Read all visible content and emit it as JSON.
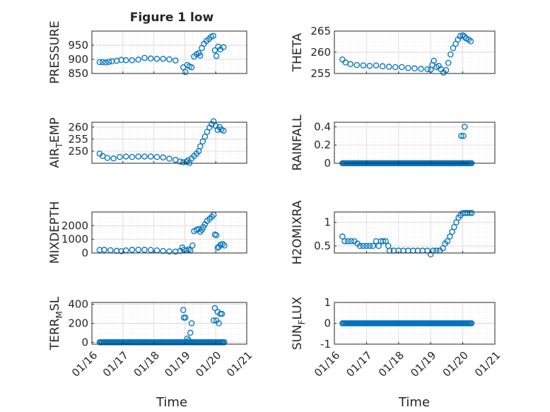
{
  "figure": {
    "title": "Figure 1 low",
    "x_label": "Time",
    "x_ticks": [
      "01/16",
      "01/17",
      "01/18",
      "01/19",
      "01/20",
      "01/21"
    ],
    "colors": {
      "marker": "#0072BD",
      "axis": "#262626",
      "grid": "#d9d9d9"
    }
  },
  "chart_data": [
    {
      "type": "scatter",
      "ylabel": "PRESSURE",
      "ylim": [
        850,
        1000
      ],
      "yticks": [
        "850",
        "900",
        "950"
      ],
      "xlim": [
        "2024-01-16",
        "2024-01-21"
      ],
      "x_day_range": [
        16.0,
        21.0
      ],
      "grid": true,
      "minor_grid": true,
      "series": [
        {
          "points": [
            [
              16.25,
              890
            ],
            [
              16.35,
              890
            ],
            [
              16.45,
              889
            ],
            [
              16.55,
              891
            ],
            [
              16.65,
              893
            ],
            [
              16.8,
              895
            ],
            [
              16.95,
              898
            ],
            [
              17.1,
              897
            ],
            [
              17.3,
              897
            ],
            [
              17.5,
              899
            ],
            [
              17.7,
              905
            ],
            [
              17.9,
              903
            ],
            [
              18.1,
              902
            ],
            [
              18.3,
              902
            ],
            [
              18.5,
              900
            ],
            [
              18.7,
              896
            ],
            [
              18.95,
              872
            ],
            [
              19.02,
              855
            ],
            [
              19.08,
              880
            ],
            [
              19.15,
              875
            ],
            [
              19.22,
              872
            ],
            [
              19.3,
              910
            ],
            [
              19.38,
              918
            ],
            [
              19.45,
              922
            ],
            [
              19.5,
              913
            ],
            [
              19.55,
              940
            ],
            [
              19.62,
              955
            ],
            [
              19.7,
              965
            ],
            [
              19.78,
              972
            ],
            [
              19.85,
              980
            ],
            [
              19.92,
              983
            ],
            [
              19.97,
              932
            ],
            [
              20.02,
              912
            ],
            [
              20.08,
              945
            ],
            [
              20.15,
              935
            ],
            [
              20.25,
              943
            ]
          ]
        }
      ]
    },
    {
      "type": "scatter",
      "ylabel": "THETA",
      "ylim": [
        255,
        265
      ],
      "yticks": [
        "255",
        "260",
        "265"
      ],
      "x_day_range": [
        16.0,
        21.0
      ],
      "grid": true,
      "minor_grid": true,
      "series": [
        {
          "points": [
            [
              16.25,
              258.3
            ],
            [
              16.35,
              257.6
            ],
            [
              16.5,
              257.2
            ],
            [
              16.7,
              257.0
            ],
            [
              16.9,
              256.9
            ],
            [
              17.1,
              256.8
            ],
            [
              17.3,
              256.9
            ],
            [
              17.5,
              256.7
            ],
            [
              17.7,
              256.6
            ],
            [
              17.9,
              256.5
            ],
            [
              18.1,
              256.5
            ],
            [
              18.3,
              256.3
            ],
            [
              18.5,
              256.2
            ],
            [
              18.7,
              256.1
            ],
            [
              18.9,
              256.0
            ],
            [
              19.0,
              255.9
            ],
            [
              19.05,
              257.0
            ],
            [
              19.1,
              258.0
            ],
            [
              19.18,
              256.5
            ],
            [
              19.25,
              256.8
            ],
            [
              19.32,
              256.0
            ],
            [
              19.4,
              255.2
            ],
            [
              19.48,
              255.8
            ],
            [
              19.55,
              257.5
            ],
            [
              19.62,
              259.5
            ],
            [
              19.7,
              261.0
            ],
            [
              19.78,
              262.0
            ],
            [
              19.85,
              263.0
            ],
            [
              19.92,
              263.8
            ],
            [
              20.0,
              264.0
            ],
            [
              20.05,
              263.7
            ],
            [
              20.1,
              263.3
            ],
            [
              20.18,
              263.0
            ],
            [
              20.25,
              262.6
            ]
          ]
        }
      ]
    },
    {
      "type": "scatter",
      "ylabel_parts": [
        "AIR",
        "T",
        "EMP"
      ],
      "ylim": [
        245,
        262
      ],
      "yticks": [
        "250",
        "255",
        "260"
      ],
      "x_day_range": [
        16.0,
        21.0
      ],
      "grid": true,
      "minor_grid": true,
      "series": [
        {
          "points": [
            [
              16.25,
              249.0
            ],
            [
              16.35,
              248.0
            ],
            [
              16.5,
              247.2
            ],
            [
              16.7,
              247.0
            ],
            [
              16.9,
              247.6
            ],
            [
              17.1,
              247.8
            ],
            [
              17.3,
              247.6
            ],
            [
              17.5,
              247.8
            ],
            [
              17.7,
              247.8
            ],
            [
              17.9,
              247.8
            ],
            [
              18.1,
              247.6
            ],
            [
              18.3,
              247.4
            ],
            [
              18.5,
              246.9
            ],
            [
              18.7,
              246.4
            ],
            [
              18.85,
              245.7
            ],
            [
              18.95,
              245.4
            ],
            [
              19.05,
              245.5
            ],
            [
              19.1,
              246.2
            ],
            [
              19.15,
              245.1
            ],
            [
              19.22,
              247.0
            ],
            [
              19.3,
              248.0
            ],
            [
              19.38,
              249.0
            ],
            [
              19.45,
              250.0
            ],
            [
              19.5,
              252.0
            ],
            [
              19.58,
              254.0
            ],
            [
              19.65,
              256.0
            ],
            [
              19.72,
              258.0
            ],
            [
              19.8,
              259.8
            ],
            [
              19.87,
              261.2
            ],
            [
              19.93,
              262.4
            ],
            [
              20.0,
              260.5
            ],
            [
              20.06,
              258.8
            ],
            [
              20.12,
              260.0
            ],
            [
              20.18,
              259.0
            ],
            [
              20.25,
              258.5
            ]
          ]
        }
      ]
    },
    {
      "type": "scatter",
      "ylabel": "RAINFALL",
      "ylim": [
        0,
        0.45
      ],
      "yticks": [
        "0",
        "0.2",
        "0.4"
      ],
      "x_day_range": [
        16.0,
        21.0
      ],
      "grid": true,
      "minor_grid": true,
      "series": [
        {
          "zero_span": [
            16.25,
            20.28
          ],
          "points": [
            [
              19.95,
              0.3
            ],
            [
              20.02,
              0.3
            ],
            [
              20.06,
              0.4
            ]
          ]
        }
      ]
    },
    {
      "type": "scatter",
      "ylabel": "MIXDEPTH",
      "ylim": [
        0,
        3000
      ],
      "yticks": [
        "0",
        "1000",
        "2000"
      ],
      "x_day_range": [
        16.0,
        21.0
      ],
      "grid": true,
      "minor_grid": true,
      "series": [
        {
          "points": [
            [
              16.25,
              220
            ],
            [
              16.4,
              230
            ],
            [
              16.6,
              200
            ],
            [
              16.8,
              160
            ],
            [
              16.95,
              130
            ],
            [
              17.1,
              190
            ],
            [
              17.3,
              230
            ],
            [
              17.5,
              240
            ],
            [
              17.7,
              230
            ],
            [
              17.9,
              220
            ],
            [
              18.1,
              190
            ],
            [
              18.3,
              150
            ],
            [
              18.5,
              110
            ],
            [
              18.7,
              100
            ],
            [
              18.85,
              150
            ],
            [
              18.92,
              400
            ],
            [
              18.97,
              220
            ],
            [
              19.05,
              180
            ],
            [
              19.12,
              260
            ],
            [
              19.18,
              200
            ],
            [
              19.25,
              550
            ],
            [
              19.3,
              1600
            ],
            [
              19.38,
              1700
            ],
            [
              19.45,
              1750
            ],
            [
              19.5,
              1550
            ],
            [
              19.55,
              1700
            ],
            [
              19.6,
              1900
            ],
            [
              19.65,
              2100
            ],
            [
              19.72,
              2350
            ],
            [
              19.8,
              2500
            ],
            [
              19.87,
              2650
            ],
            [
              19.93,
              2800
            ],
            [
              19.97,
              1350
            ],
            [
              20.02,
              1300
            ],
            [
              20.06,
              380
            ],
            [
              20.1,
              450
            ],
            [
              20.15,
              600
            ],
            [
              20.22,
              650
            ],
            [
              20.28,
              550
            ]
          ]
        }
      ]
    },
    {
      "type": "scatter",
      "ylabel": "H2OMIXRA",
      "ylim": [
        0.35,
        1.22
      ],
      "yticks": [
        "0.5",
        "1"
      ],
      "x_day_range": [
        16.0,
        21.0
      ],
      "grid": true,
      "minor_grid": true,
      "series": [
        {
          "points": [
            [
              16.25,
              0.7
            ],
            [
              16.32,
              0.6
            ],
            [
              16.42,
              0.6
            ],
            [
              16.52,
              0.6
            ],
            [
              16.62,
              0.6
            ],
            [
              16.72,
              0.55
            ],
            [
              16.8,
              0.5
            ],
            [
              16.9,
              0.5
            ],
            [
              17.0,
              0.5
            ],
            [
              17.1,
              0.5
            ],
            [
              17.2,
              0.5
            ],
            [
              17.3,
              0.6
            ],
            [
              17.38,
              0.5
            ],
            [
              17.45,
              0.6
            ],
            [
              17.52,
              0.6
            ],
            [
              17.6,
              0.6
            ],
            [
              17.68,
              0.5
            ],
            [
              17.72,
              0.4
            ],
            [
              17.85,
              0.4
            ],
            [
              18.0,
              0.4
            ],
            [
              18.15,
              0.4
            ],
            [
              18.3,
              0.4
            ],
            [
              18.45,
              0.4
            ],
            [
              18.6,
              0.4
            ],
            [
              18.75,
              0.4
            ],
            [
              18.9,
              0.4
            ],
            [
              19.0,
              0.32
            ],
            [
              19.08,
              0.4
            ],
            [
              19.18,
              0.4
            ],
            [
              19.28,
              0.4
            ],
            [
              19.38,
              0.45
            ],
            [
              19.45,
              0.55
            ],
            [
              19.52,
              0.6
            ],
            [
              19.6,
              0.7
            ],
            [
              19.67,
              0.8
            ],
            [
              19.73,
              0.9
            ],
            [
              19.8,
              1.0
            ],
            [
              19.87,
              1.1
            ],
            [
              19.93,
              1.15
            ],
            [
              20.0,
              1.2
            ],
            [
              20.08,
              1.2
            ],
            [
              20.15,
              1.2
            ],
            [
              20.22,
              1.2
            ],
            [
              20.28,
              1.2
            ]
          ]
        }
      ]
    },
    {
      "type": "scatter",
      "ylabel_parts": [
        "TERR",
        "M",
        "SL"
      ],
      "ylim": [
        -20,
        420
      ],
      "yticks": [
        "0",
        "200",
        "400"
      ],
      "x_day_range": [
        16.0,
        21.0
      ],
      "grid": true,
      "minor_grid": true,
      "series": [
        {
          "zero_span": [
            16.25,
            20.28
          ],
          "points": [
            [
              18.95,
              340
            ],
            [
              18.97,
              260
            ],
            [
              19.02,
              260
            ],
            [
              19.08,
              40
            ],
            [
              19.12,
              20
            ],
            [
              19.18,
              100
            ],
            [
              19.22,
              200
            ],
            [
              19.93,
              230
            ],
            [
              19.97,
              360
            ],
            [
              20.02,
              230
            ],
            [
              20.06,
              320
            ],
            [
              20.1,
              200
            ],
            [
              20.15,
              300
            ],
            [
              20.2,
              300
            ]
          ]
        }
      ]
    },
    {
      "type": "scatter",
      "ylabel_parts": [
        "SUN",
        "F",
        "LUX"
      ],
      "ylim": [
        -1,
        1
      ],
      "yticks": [
        "-1",
        "0",
        "1"
      ],
      "x_day_range": [
        16.0,
        21.0
      ],
      "grid": true,
      "minor_grid": true,
      "series": [
        {
          "zero_span": [
            16.25,
            20.28
          ],
          "points": []
        }
      ]
    }
  ]
}
